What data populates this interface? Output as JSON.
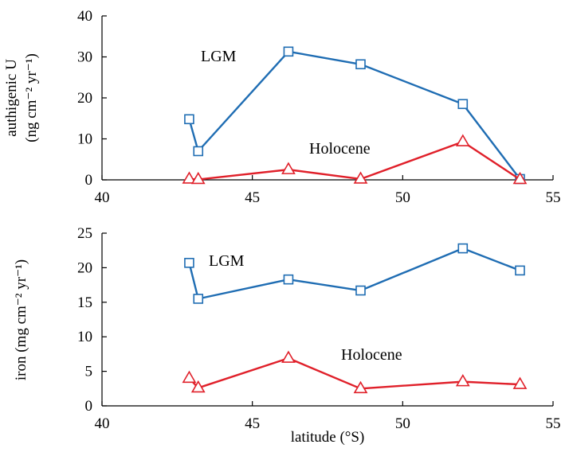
{
  "chart_data": [
    {
      "type": "line",
      "xlabel": "",
      "ylabel": "authigenic U",
      "ylabel_unit": "(ng cm⁻² yr⁻¹)",
      "xlim": [
        40,
        55
      ],
      "ylim": [
        0,
        40
      ],
      "xticks": [
        40,
        45,
        50,
        55
      ],
      "yticks": [
        0,
        10,
        20,
        30,
        40
      ],
      "grid": false,
      "series": [
        {
          "name": "LGM",
          "color": "#1f6db3",
          "marker": "square",
          "x": [
            42.9,
            43.2,
            46.2,
            48.6,
            52.0,
            53.9
          ],
          "y": [
            14.8,
            7.0,
            31.3,
            28.2,
            18.5,
            0.2
          ]
        },
        {
          "name": "Holocene",
          "color": "#e0202a",
          "marker": "triangle",
          "x": [
            42.9,
            43.2,
            46.2,
            48.6,
            52.0,
            53.9
          ],
          "y": [
            0.2,
            0.1,
            2.5,
            0.2,
            9.3,
            0.1
          ]
        }
      ],
      "annotations": [
        {
          "text": "LGM",
          "series": "LGM"
        },
        {
          "text": "Holocene",
          "series": "Holocene"
        }
      ]
    },
    {
      "type": "line",
      "xlabel": "latitude (°S)",
      "ylabel": "iron (mg cm⁻² yr⁻¹)",
      "xlim": [
        40,
        55
      ],
      "ylim": [
        0,
        25
      ],
      "xticks": [
        40,
        45,
        50,
        55
      ],
      "yticks": [
        0,
        5,
        10,
        15,
        20,
        25
      ],
      "grid": false,
      "series": [
        {
          "name": "LGM",
          "color": "#1f6db3",
          "marker": "square",
          "x": [
            42.9,
            43.2,
            46.2,
            48.6,
            52.0,
            53.9
          ],
          "y": [
            20.7,
            15.5,
            18.3,
            16.7,
            22.8,
            19.6
          ]
        },
        {
          "name": "Holocene",
          "color": "#e0202a",
          "marker": "triangle",
          "x": [
            42.9,
            43.2,
            46.2,
            48.6,
            52.0,
            53.9
          ],
          "y": [
            4.0,
            2.6,
            6.9,
            2.5,
            3.5,
            3.1
          ]
        }
      ],
      "annotations": [
        {
          "text": "LGM",
          "series": "LGM"
        },
        {
          "text": "Holocene",
          "series": "Holocene"
        }
      ]
    }
  ]
}
